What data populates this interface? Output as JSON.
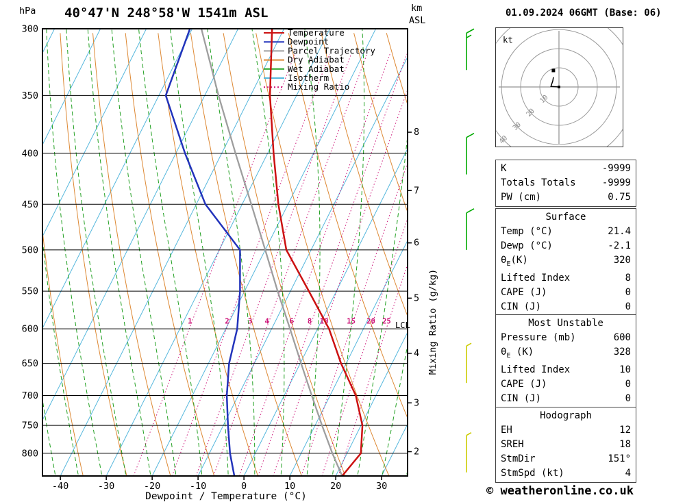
{
  "header": {
    "title": "40°47'N 248°58'W 1541m ASL",
    "datetime": "01.09.2024 06GMT (Base: 06)"
  },
  "axes": {
    "pressure_unit": "hPa",
    "km_unit_line1": "km",
    "km_unit_line2": "ASL",
    "x_label": "Dewpoint / Temperature (°C)",
    "mixing_axis_label": "Mixing Ratio (g/kg)",
    "lcl_label": "LCL"
  },
  "legend": [
    {
      "label": "Temperature",
      "color": "#cc1111",
      "style": "solid"
    },
    {
      "label": "Dewpoint",
      "color": "#2233bb",
      "style": "solid"
    },
    {
      "label": "Parcel Trajectory",
      "color": "#9e9e9e",
      "style": "solid"
    },
    {
      "label": "Dry Adiabat",
      "color": "#dd8833",
      "style": "solid"
    },
    {
      "label": "Wet Adiabat",
      "color": "#22a022",
      "style": "solid"
    },
    {
      "label": "Isotherm",
      "color": "#55b7dd",
      "style": "solid"
    },
    {
      "label": "Mixing Ratio",
      "color": "#cc1177",
      "style": "dotted"
    }
  ],
  "chart_data": {
    "type": "skewt",
    "pressure_range": [
      300,
      843
    ],
    "pressure_ticks": [
      300,
      350,
      400,
      450,
      500,
      550,
      600,
      650,
      700,
      750,
      800
    ],
    "temp_ticks": [
      -40,
      -30,
      -20,
      -10,
      0,
      10,
      20,
      30
    ],
    "skew_ratio": 0.5,
    "isotherm_step": 10,
    "dry_adiabat_theta_k": {
      "min": 240,
      "max": 440,
      "step": 10
    },
    "wet_adiabat_t1000_c": {
      "min": -35,
      "max": 40,
      "step": 5
    },
    "mixing_ratio_gkg": [
      1,
      2,
      3,
      4,
      6,
      8,
      10,
      15,
      20,
      25
    ],
    "mixing_ratio_label_pressure": 590,
    "mixing_ratio_offset_c": -4.9,
    "km_ticks": [
      {
        "km": 8,
        "p": 381
      },
      {
        "km": 7,
        "p": 436
      },
      {
        "km": 6,
        "p": 492
      },
      {
        "km": 5,
        "p": 559
      },
      {
        "km": 4,
        "p": 635
      },
      {
        "km": 3,
        "p": 712
      },
      {
        "km": 2,
        "p": 797
      }
    ],
    "lcl_pressure": 595,
    "profiles": {
      "pressure": [
        843,
        800,
        750,
        700,
        650,
        600,
        550,
        500,
        450,
        400,
        350,
        300
      ],
      "temperature_c": [
        21.4,
        23.0,
        20.3,
        15.6,
        8.9,
        2.5,
        -6.0,
        -15.4,
        -22.1,
        -28.7,
        -35.8,
        -42.6
      ],
      "dewpoint_c": [
        -2.1,
        -5.5,
        -9.0,
        -12.5,
        -15.5,
        -17.5,
        -21.0,
        -25.5,
        -38.0,
        -48.0,
        -58.5,
        -60.5
      ],
      "parcel_c": [
        21.4,
        16.8,
        11.5,
        6.0,
        0.2,
        -6.0,
        -12.8,
        -20.0,
        -28.0,
        -37.0,
        -47.0,
        -58.0
      ]
    },
    "wind_barbs": [
      {
        "pressure": 330,
        "speed_kt": 15,
        "color": "#00aa00"
      },
      {
        "pressure": 420,
        "speed_kt": 10,
        "color": "#00aa00"
      },
      {
        "pressure": 500,
        "speed_kt": 10,
        "color": "#00aa00"
      },
      {
        "pressure": 680,
        "speed_kt": 5,
        "color": "#cccc00"
      },
      {
        "pressure": 836,
        "speed_kt": 5,
        "color": "#cccc00"
      }
    ],
    "colors": {
      "temperature": "#cc1111",
      "dewpoint": "#2233bb",
      "parcel": "#9e9e9e",
      "dry_adiabat": "#dd8833",
      "wet_adiabat": "#22a022",
      "isotherm": "#55b7dd",
      "mixing_ratio": "#cc1177",
      "grid": "#000000"
    }
  },
  "hodograph": {
    "unit_label": "kt",
    "ring_step_kt": 10,
    "ring_labels": [
      "10",
      "20",
      "30",
      "40"
    ],
    "trace_kt": [
      [
        0,
        0
      ],
      [
        -4.2,
        0.3
      ],
      [
        -3.2,
        3.2
      ],
      [
        -2.9,
        5.1
      ]
    ],
    "dot_kt": [
      -2.9,
      8.6
    ]
  },
  "stats": {
    "indices": [
      {
        "label": "K",
        "value": "-9999"
      },
      {
        "label": "Totals Totals",
        "value": "-9999"
      },
      {
        "label": "PW (cm)",
        "value": "0.75"
      }
    ],
    "surface": {
      "title": "Surface",
      "rows": [
        {
          "label": "Temp (°C)",
          "value": "21.4"
        },
        {
          "label": "Dewp (°C)",
          "value": "-2.1"
        },
        {
          "label": "θ",
          "label_sub": "E",
          "label_rest": "(K)",
          "value": "320"
        },
        {
          "label": "Lifted Index",
          "value": "8"
        },
        {
          "label": "CAPE (J)",
          "value": "0"
        },
        {
          "label": "CIN (J)",
          "value": "0"
        }
      ]
    },
    "most_unstable": {
      "title": "Most Unstable",
      "rows": [
        {
          "label": "Pressure (mb)",
          "value": "600"
        },
        {
          "label": "θ",
          "label_sub": "E",
          "label_rest": " (K)",
          "value": "328"
        },
        {
          "label": "Lifted Index",
          "value": "10"
        },
        {
          "label": "CAPE (J)",
          "value": "0"
        },
        {
          "label": "CIN (J)",
          "value": "0"
        }
      ]
    },
    "hodograph_stats": {
      "title": "Hodograph",
      "rows": [
        {
          "label": "EH",
          "value": "12"
        },
        {
          "label": "SREH",
          "value": "18"
        },
        {
          "label": "StmDir",
          "value": "151°"
        },
        {
          "label": "StmSpd (kt)",
          "value": "4"
        }
      ]
    }
  },
  "footer": {
    "copyright": "© weatheronline.co.uk"
  }
}
